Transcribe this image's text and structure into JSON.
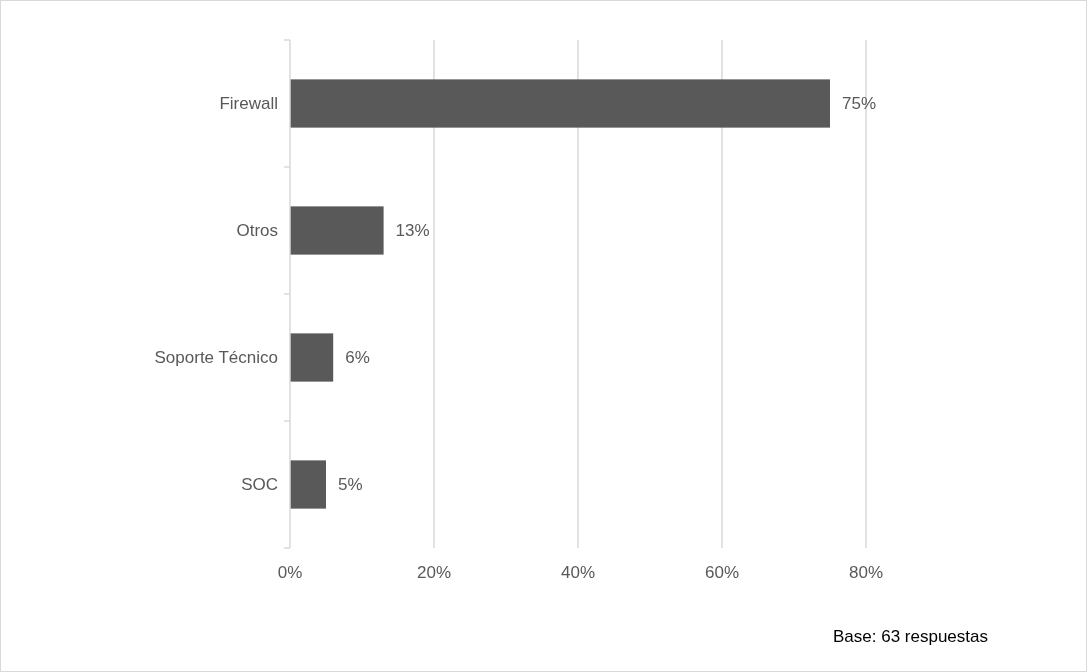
{
  "chart_data": {
    "type": "bar",
    "orientation": "horizontal",
    "categories": [
      "Firewall",
      "Otros",
      "Soporte Técnico",
      "SOC"
    ],
    "values": [
      75,
      13,
      6,
      5
    ],
    "color": "#595959",
    "xlim": [
      0,
      80
    ],
    "xticks": [
      {
        "value": 0,
        "label": "0%"
      },
      {
        "value": 20,
        "label": "20%"
      },
      {
        "value": 40,
        "label": "40%"
      },
      {
        "value": 60,
        "label": "60%"
      },
      {
        "value": 80,
        "label": "80%"
      }
    ],
    "grid": "x",
    "value_labels": [
      "75%",
      "13%",
      "6%",
      "5%"
    ],
    "annotations": [
      "Base: 63 respuestas"
    ]
  }
}
